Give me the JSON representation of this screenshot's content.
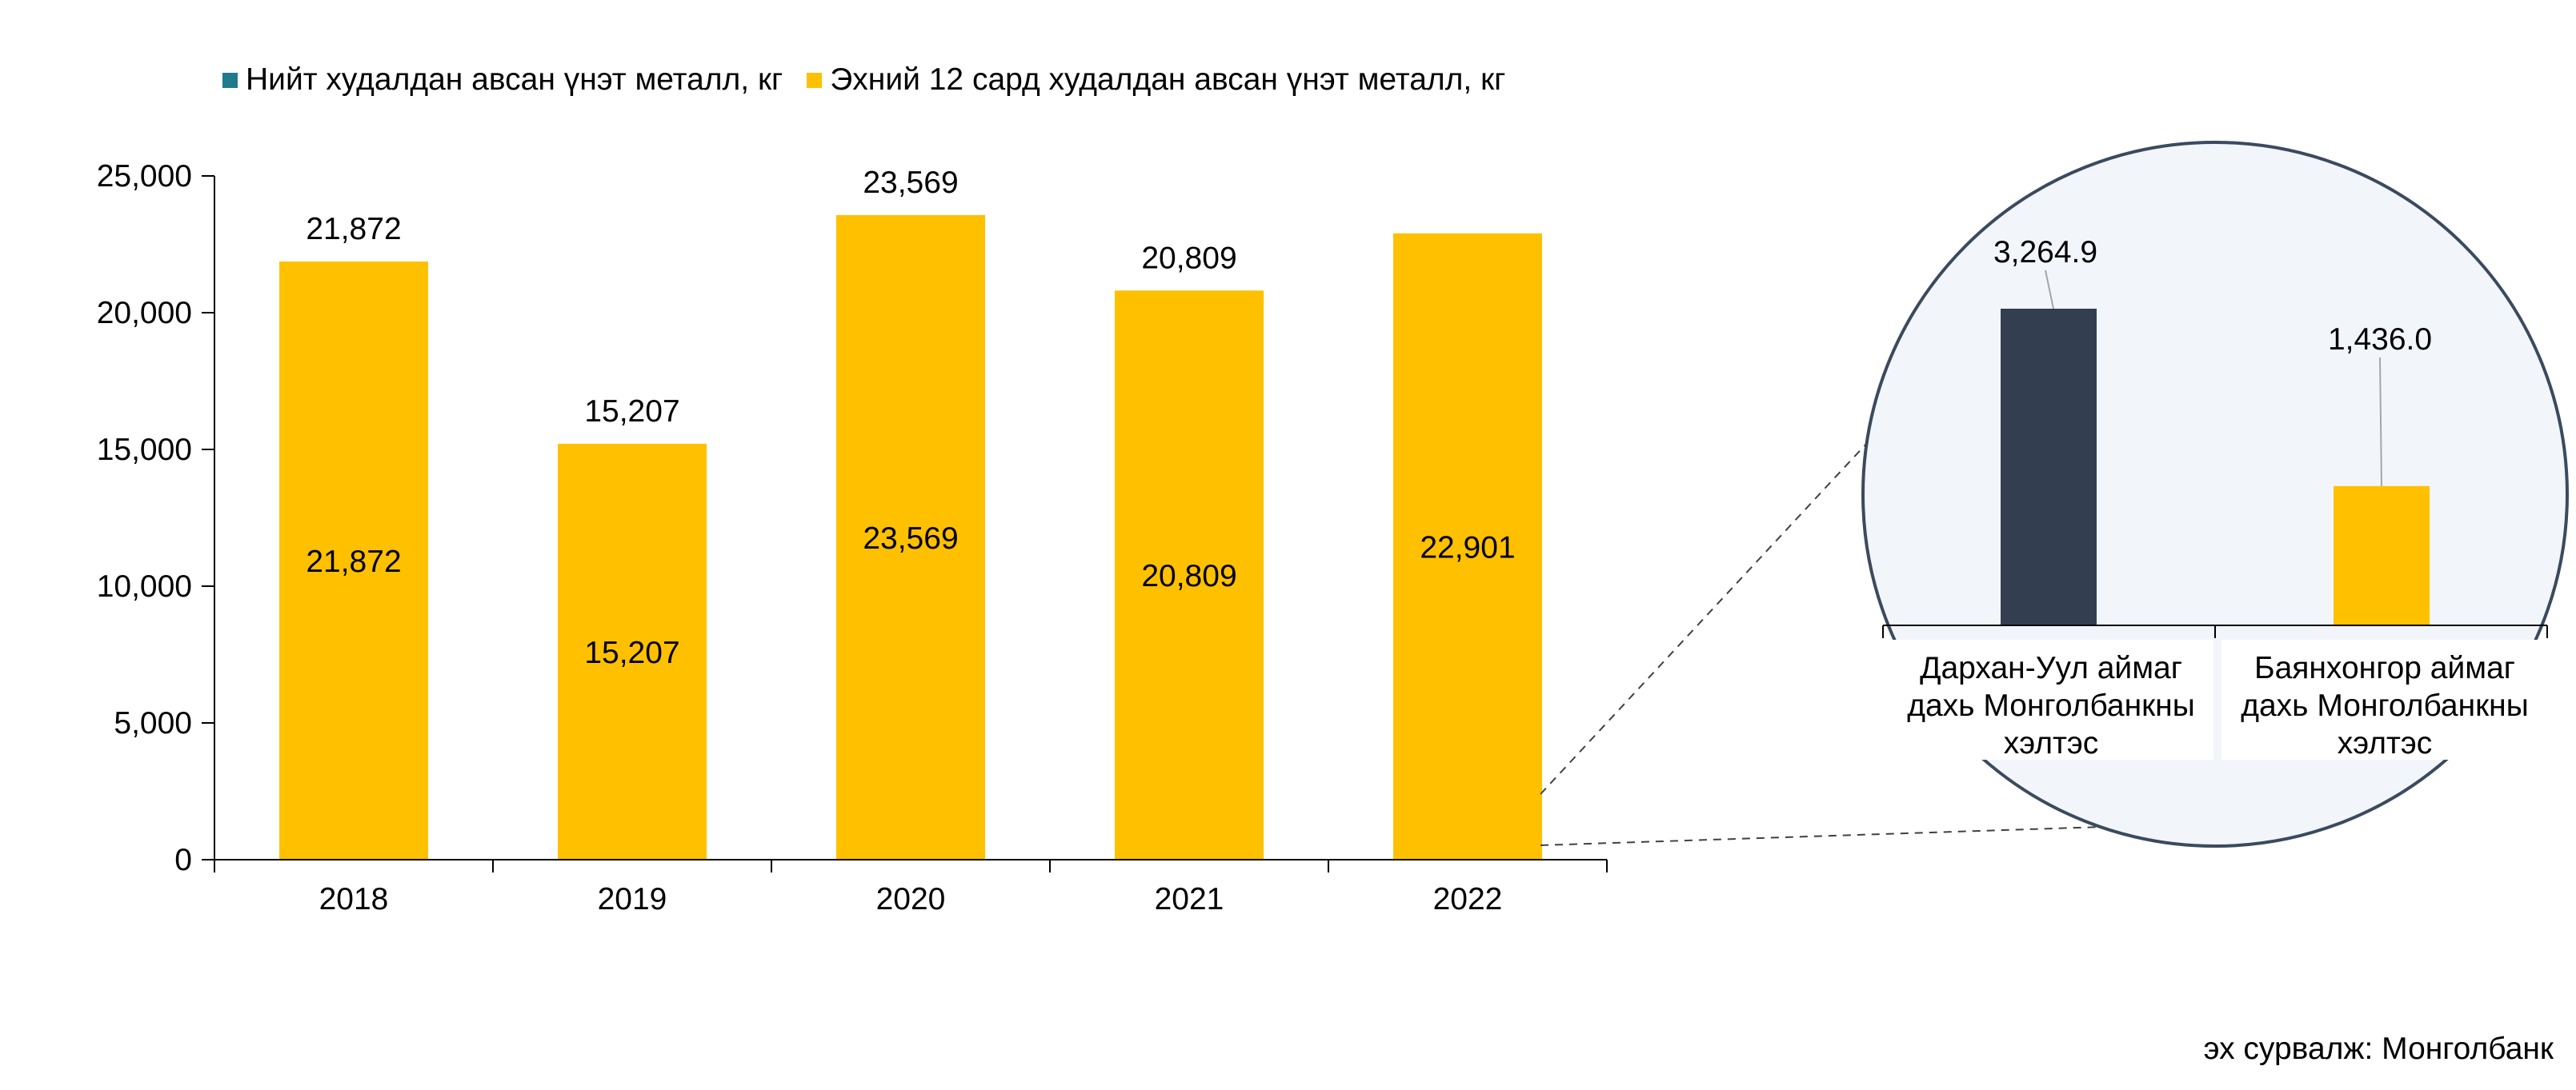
{
  "legend": [
    {
      "label": "Нийт худалдан авсан үнэт металл, кг",
      "color": "#1F7A8C"
    },
    {
      "label": "Эхний 12 сард худалдан авсан үнэт металл, кг",
      "color": "#FFC000"
    }
  ],
  "source": "эх сурвалж: Монголбанк",
  "chart_data": [
    {
      "type": "bar",
      "categories": [
        "2018",
        "2019",
        "2020",
        "2021",
        "2022"
      ],
      "ylim": [
        0,
        25000
      ],
      "yticks": [
        "0",
        "5,000",
        "10,000",
        "15,000",
        "20,000",
        "25,000"
      ],
      "series": [
        {
          "name": "Нийт худалдан авсан үнэт металл, кг",
          "values": [
            21872,
            15207,
            23569,
            20809,
            null
          ],
          "labels": [
            "21,872",
            "15,207",
            "23,569",
            "20,809",
            ""
          ]
        },
        {
          "name": "Эхний 12 сард худалдан авсан үнэт металл, кг",
          "values": [
            21872,
            15207,
            23569,
            20809,
            22901
          ],
          "labels": [
            "21,872",
            "15,207",
            "23,569",
            "20,809",
            "22,901"
          ]
        }
      ],
      "colors": {
        "bar": "#FFC000"
      }
    },
    {
      "type": "bar",
      "categories": [
        "Дархан-Уул аймаг дахь Монголбанкны хэлтэс",
        "Баянхонгор аймаг дахь Монголбанкны хэлтэс"
      ],
      "values": [
        3264.9,
        1436.0
      ],
      "labels": [
        "3,264.9",
        "1,436.0"
      ],
      "colors": [
        "#333F50",
        "#FFC000"
      ]
    }
  ]
}
